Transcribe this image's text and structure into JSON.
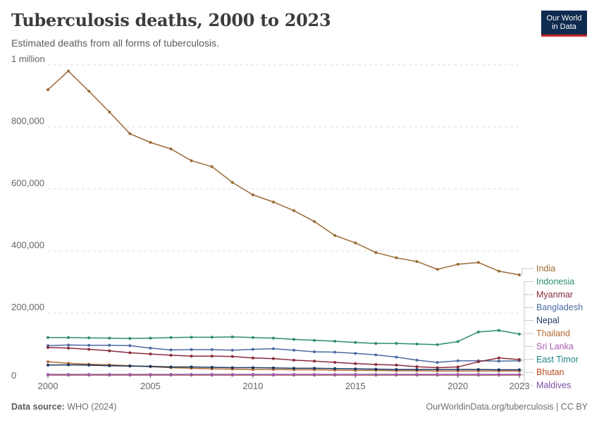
{
  "header": {
    "title": "Tuberculosis deaths, 2000 to 2023",
    "subtitle": "Estimated deaths from all forms of tuberculosis.",
    "logo_line1": "Our World",
    "logo_line2": "in Data"
  },
  "footer": {
    "source_label": "Data source:",
    "source_value": "WHO (2024)",
    "url": "OurWorldinData.org/tuberculosis | CC BY"
  },
  "chart_data": {
    "type": "line",
    "title": "Tuberculosis deaths, 2000 to 2023",
    "subtitle": "Estimated deaths from all forms of tuberculosis.",
    "xlabel": "",
    "ylabel": "",
    "x": [
      2000,
      2001,
      2002,
      2003,
      2004,
      2005,
      2006,
      2007,
      2008,
      2009,
      2010,
      2011,
      2012,
      2013,
      2014,
      2015,
      2016,
      2017,
      2018,
      2019,
      2020,
      2021,
      2022,
      2023
    ],
    "xlim": [
      2000,
      2023
    ],
    "ylim": [
      0,
      1000000
    ],
    "x_ticks": [
      2000,
      2005,
      2010,
      2015,
      2020,
      2023
    ],
    "x_tick_labels": [
      "2000",
      "2005",
      "2010",
      "2015",
      "2020",
      "2023"
    ],
    "y_ticks": [
      0,
      200000,
      400000,
      600000,
      800000,
      1000000
    ],
    "y_tick_labels": [
      "0",
      "200,000",
      "400,000",
      "600,000",
      "800,000",
      "1 million"
    ],
    "grid": "horizontal dashed",
    "legend": "right",
    "series": [
      {
        "name": "India",
        "color": "#9a6a36",
        "values": [
          920000,
          980000,
          915000,
          848000,
          778000,
          750000,
          729000,
          691000,
          672000,
          621000,
          581000,
          558000,
          530000,
          495000,
          450000,
          426000,
          395000,
          378000,
          366000,
          341000,
          357000,
          363000,
          335000,
          323000
        ]
      },
      {
        "name": "Indonesia",
        "color": "#2d8d6f",
        "values": [
          121000,
          121000,
          120000,
          119000,
          118000,
          119000,
          121000,
          122000,
          122000,
          123000,
          121000,
          119000,
          115000,
          112000,
          109000,
          105000,
          102000,
          102000,
          100000,
          98000,
          108000,
          139000,
          144000,
          132000
        ]
      },
      {
        "name": "Myanmar",
        "color": "#8a2b3c",
        "values": [
          89000,
          87000,
          83000,
          78000,
          72000,
          68000,
          64000,
          61000,
          61000,
          60000,
          55000,
          53000,
          48000,
          45000,
          41000,
          37000,
          34000,
          32000,
          27000,
          24000,
          26000,
          43000,
          55000,
          50000
        ]
      },
      {
        "name": "Bangladesh",
        "color": "#4c6ba3",
        "values": [
          95000,
          97000,
          96000,
          96000,
          95000,
          87000,
          81000,
          82000,
          82000,
          80000,
          83000,
          85000,
          80000,
          75000,
          74000,
          70000,
          65000,
          58000,
          48000,
          41000,
          46000,
          46000,
          45000,
          46000
        ]
      },
      {
        "name": "Nepal",
        "color": "#18365f",
        "values": [
          32000,
          33000,
          32000,
          30000,
          29000,
          28000,
          26000,
          26000,
          25000,
          24000,
          24000,
          23000,
          22000,
          22000,
          21000,
          20000,
          19000,
          18000,
          18000,
          18000,
          18000,
          18000,
          17000,
          17000
        ]
      },
      {
        "name": "Thailand",
        "color": "#b66a34",
        "values": [
          43000,
          38000,
          35000,
          33000,
          30000,
          27000,
          24000,
          22000,
          20000,
          19000,
          18000,
          18000,
          17000,
          17000,
          16000,
          15000,
          15000,
          14000,
          14000,
          13000,
          13000,
          13000,
          13000,
          13000
        ]
      },
      {
        "name": "Sri Lanka",
        "color": "#a65ab0",
        "values": [
          2000,
          2000,
          2000,
          2000,
          2000,
          2000,
          2000,
          2000,
          2000,
          2000,
          2000,
          2000,
          2000,
          2000,
          2000,
          2000,
          2000,
          2000,
          2000,
          2000,
          2000,
          2000,
          2000,
          2000
        ]
      },
      {
        "name": "East Timor",
        "color": "#21878a",
        "values": [
          2000,
          2000,
          2000,
          2000,
          2000,
          2000,
          2000,
          2000,
          2000,
          2000,
          2000,
          2000,
          2000,
          2000,
          2000,
          2000,
          2000,
          2000,
          2000,
          2000,
          2000,
          2000,
          2000,
          2000
        ]
      },
      {
        "name": "Bhutan",
        "color": "#bb4a1e",
        "values": [
          500,
          500,
          500,
          500,
          500,
          500,
          500,
          500,
          500,
          500,
          500,
          500,
          500,
          500,
          500,
          500,
          500,
          500,
          500,
          500,
          500,
          500,
          500,
          500
        ]
      },
      {
        "name": "Maldives",
        "color": "#7b4aa1",
        "values": [
          100,
          100,
          100,
          100,
          100,
          100,
          100,
          100,
          100,
          100,
          100,
          100,
          100,
          100,
          100,
          100,
          100,
          100,
          100,
          100,
          100,
          100,
          100,
          100
        ]
      }
    ]
  }
}
